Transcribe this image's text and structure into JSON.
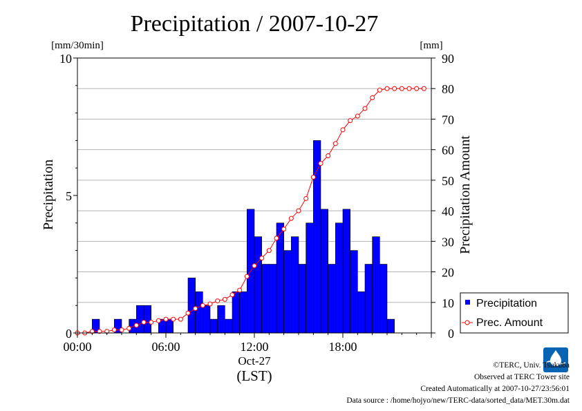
{
  "chart_data": {
    "type": "bar",
    "title": "Precipitation / 2007-10-27",
    "ylabel_left": "Precipitation",
    "yunit_left": "[mm/30min]",
    "ylabel_right": "Precipitation Amount",
    "yunit_right": "[mm]",
    "ylim_left": [
      0,
      10
    ],
    "ylim_right": [
      0,
      90
    ],
    "yticks_left": [
      "0",
      "5",
      "10"
    ],
    "yticks_right": [
      "0",
      "10",
      "20",
      "30",
      "40",
      "50",
      "60",
      "70",
      "80",
      "90"
    ],
    "xticks": [
      "00:00",
      "06:00",
      "12:00",
      "18:00"
    ],
    "xdate": "Oct-27",
    "xlabel": "(LST)",
    "grid": true,
    "legend_position": "right",
    "series": [
      {
        "name": "Precipitation",
        "kind": "bar",
        "color": "#0000ff",
        "values": [
          0,
          0,
          0.5,
          0,
          0,
          0.5,
          0,
          0.5,
          1,
          1,
          0,
          0.5,
          0.5,
          0,
          0,
          2,
          1.5,
          1,
          0.5,
          1,
          0.5,
          1.5,
          1.5,
          4.5,
          3.5,
          2.5,
          2.5,
          4,
          3,
          3.5,
          2.5,
          4,
          7,
          4.5,
          2.5,
          4,
          4.5,
          3,
          1.5,
          2.5,
          3.5,
          2.5,
          0.5,
          0,
          0,
          0,
          0,
          0
        ]
      },
      {
        "name": "Prec. Amount",
        "kind": "line",
        "color": "#ff0000",
        "values": [
          0,
          0,
          0.5,
          0.5,
          0.5,
          1,
          1,
          1.5,
          2.5,
          3.5,
          3.5,
          4,
          4.5,
          4.5,
          4.5,
          6.5,
          8,
          9,
          9.5,
          10.5,
          11,
          12.5,
          14,
          18.5,
          22,
          24.5,
          27,
          31,
          34,
          37.5,
          40,
          44,
          51,
          55.5,
          58,
          62,
          66.5,
          69.5,
          71,
          73.5,
          77,
          79.5,
          80,
          80,
          80,
          80,
          80,
          80
        ]
      }
    ]
  },
  "legend": {
    "precipitation": "Precipitation",
    "amount": "Prec. Amount"
  },
  "footer": {
    "copyright": "©TERC, Univ. Tsukuba",
    "observed": "Observed at TERC Tower site",
    "created": "Created Automatically at 2007-10-27/23:56:01",
    "source": "Data source : /home/hojyo/new/TERC-data/sorted_data/MET.30m.dat"
  },
  "logo": {
    "text": "TERC",
    "color": "#0a64b4"
  }
}
